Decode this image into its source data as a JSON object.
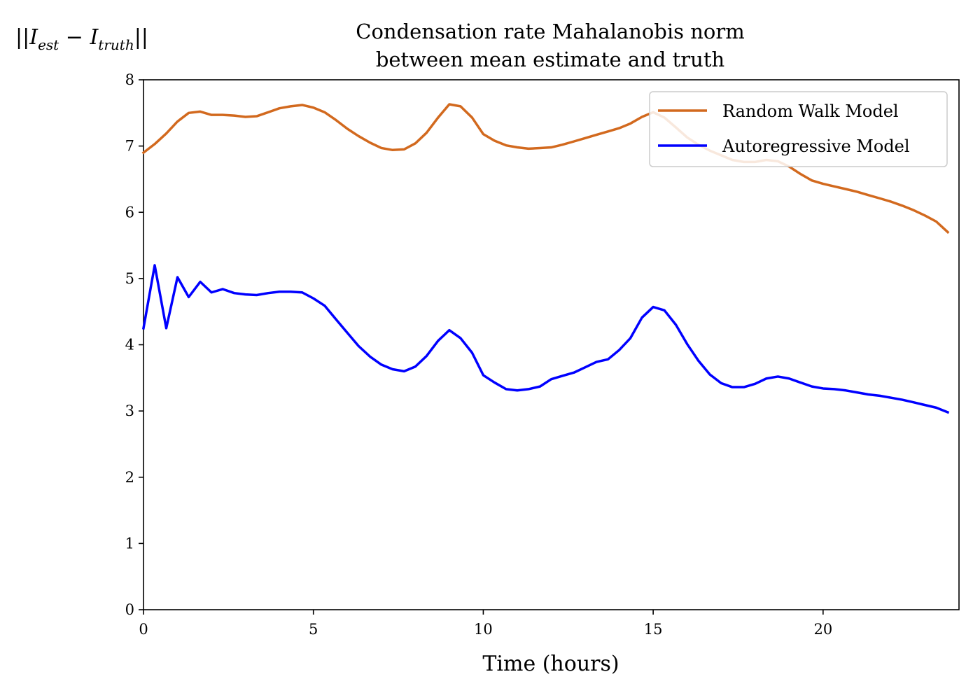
{
  "chart_data": {
    "type": "line",
    "title_lines": [
      "Condensation rate Mahalanobis norm",
      "between mean estimate and truth"
    ],
    "xlabel": "Time (hours)",
    "ylabel": "||I_est − I_truth||",
    "xlim": [
      0,
      24
    ],
    "ylim": [
      0,
      8
    ],
    "x_ticks": [
      0,
      5,
      10,
      15,
      20
    ],
    "y_ticks": [
      0,
      1,
      2,
      3,
      4,
      5,
      6,
      7,
      8
    ],
    "grid": false,
    "legend_position": "top-right",
    "series": [
      {
        "name": "Random Walk Model",
        "color": "#d2691e",
        "x": [
          0,
          0.33,
          0.67,
          1.0,
          1.33,
          1.67,
          2.0,
          2.33,
          2.67,
          3.0,
          3.33,
          3.67,
          4.0,
          4.33,
          4.67,
          5.0,
          5.33,
          5.67,
          6.0,
          6.33,
          6.67,
          7.0,
          7.33,
          7.67,
          8.0,
          8.33,
          8.67,
          9.0,
          9.33,
          9.67,
          10.0,
          10.33,
          10.67,
          11.0,
          11.33,
          11.67,
          12.0,
          12.33,
          12.67,
          13.0,
          13.33,
          13.67,
          14.0,
          14.33,
          14.67,
          15.0,
          15.33,
          15.67,
          16.0,
          16.33,
          16.67,
          17.0,
          17.33,
          17.67,
          18.0,
          18.33,
          18.67,
          19.0,
          19.33,
          19.67,
          20.0,
          20.33,
          20.67,
          21.0,
          21.33,
          21.67,
          22.0,
          22.33,
          22.67,
          23.0,
          23.33,
          23.67
        ],
        "values": [
          6.9,
          7.03,
          7.19,
          7.37,
          7.5,
          7.52,
          7.47,
          7.47,
          7.46,
          7.44,
          7.45,
          7.51,
          7.57,
          7.6,
          7.62,
          7.58,
          7.51,
          7.39,
          7.26,
          7.15,
          7.05,
          6.97,
          6.94,
          6.95,
          7.04,
          7.2,
          7.43,
          7.63,
          7.6,
          7.43,
          7.18,
          7.08,
          7.01,
          6.98,
          6.96,
          6.97,
          6.98,
          7.02,
          7.07,
          7.12,
          7.17,
          7.22,
          7.27,
          7.34,
          7.44,
          7.51,
          7.43,
          7.28,
          7.13,
          7.02,
          6.93,
          6.86,
          6.79,
          6.76,
          6.76,
          6.79,
          6.77,
          6.69,
          6.58,
          6.48,
          6.43,
          6.39,
          6.35,
          6.31,
          6.26,
          6.21,
          6.16,
          6.1,
          6.03,
          5.95,
          5.86,
          5.7
        ]
      },
      {
        "name": "Autoregressive Model",
        "color": "#0000ff",
        "x": [
          0,
          0.33,
          0.67,
          1.0,
          1.33,
          1.67,
          2.0,
          2.33,
          2.67,
          3.0,
          3.33,
          3.67,
          4.0,
          4.33,
          4.67,
          5.0,
          5.33,
          5.67,
          6.0,
          6.33,
          6.67,
          7.0,
          7.33,
          7.67,
          8.0,
          8.33,
          8.67,
          9.0,
          9.33,
          9.67,
          10.0,
          10.33,
          10.67,
          11.0,
          11.33,
          11.67,
          12.0,
          12.33,
          12.67,
          13.0,
          13.33,
          13.67,
          14.0,
          14.33,
          14.67,
          15.0,
          15.33,
          15.67,
          16.0,
          16.33,
          16.67,
          17.0,
          17.33,
          17.67,
          18.0,
          18.33,
          18.67,
          19.0,
          19.33,
          19.67,
          20.0,
          20.33,
          20.67,
          21.0,
          21.33,
          21.67,
          22.0,
          22.33,
          22.67,
          23.0,
          23.33,
          23.67
        ],
        "values": [
          4.25,
          5.2,
          4.25,
          5.02,
          4.72,
          4.95,
          4.79,
          4.84,
          4.78,
          4.76,
          4.75,
          4.78,
          4.8,
          4.8,
          4.79,
          4.7,
          4.59,
          4.38,
          4.18,
          3.98,
          3.82,
          3.7,
          3.63,
          3.6,
          3.67,
          3.83,
          4.06,
          4.22,
          4.1,
          3.88,
          3.54,
          3.43,
          3.33,
          3.31,
          3.33,
          3.37,
          3.48,
          3.53,
          3.58,
          3.66,
          3.74,
          3.78,
          3.92,
          4.1,
          4.41,
          4.57,
          4.52,
          4.3,
          4.01,
          3.76,
          3.55,
          3.42,
          3.36,
          3.36,
          3.41,
          3.49,
          3.52,
          3.49,
          3.43,
          3.37,
          3.34,
          3.33,
          3.31,
          3.28,
          3.25,
          3.23,
          3.2,
          3.17,
          3.13,
          3.09,
          3.05,
          2.98
        ]
      }
    ]
  }
}
